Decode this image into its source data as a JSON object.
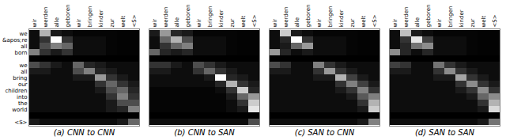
{
  "chart_data": [
    {
      "type": "heatmap",
      "title": "(a) CNN to CNN",
      "x": [
        "wir",
        "werden",
        "alle",
        "geboren",
        "wir",
        "bringen",
        "kinder",
        "zur",
        "welt",
        "<S>"
      ],
      "y": [
        "we",
        "&apos;re",
        "all",
        "born",
        null,
        "we",
        "all",
        "bring",
        "our",
        "children",
        "into",
        "the",
        "world",
        null,
        "<S>"
      ],
      "color_range": [
        0,
        1
      ],
      "values": [
        [
          0.05,
          0.7,
          0.1,
          0.05,
          0.02,
          0.02,
          0.02,
          0.02,
          0.01,
          0.01
        ],
        [
          0.05,
          0.2,
          1.0,
          0.2,
          0.05,
          0.05,
          0.05,
          0.02,
          0.01,
          0.01
        ],
        [
          0.05,
          0.3,
          0.5,
          0.4,
          0.05,
          0.05,
          0.05,
          0.02,
          0.01,
          0.01
        ],
        [
          0.5,
          0.2,
          0.1,
          0.2,
          0.05,
          0.05,
          0.05,
          0.02,
          0.01,
          0.01
        ],
        [
          0.0,
          0.0,
          0.0,
          0.0,
          0.0,
          0.0,
          0.0,
          0.0,
          0.0,
          0.0
        ],
        [
          0.3,
          0.2,
          0.1,
          0.05,
          0.4,
          0.15,
          0.1,
          0.05,
          0.05,
          0.05
        ],
        [
          0.1,
          0.1,
          0.05,
          0.05,
          0.3,
          0.5,
          0.15,
          0.1,
          0.05,
          0.05
        ],
        [
          0.05,
          0.05,
          0.05,
          0.05,
          0.1,
          0.1,
          0.6,
          0.2,
          0.1,
          0.05
        ],
        [
          0.05,
          0.05,
          0.05,
          0.05,
          0.05,
          0.05,
          0.2,
          0.4,
          0.2,
          0.1
        ],
        [
          0.05,
          0.05,
          0.05,
          0.05,
          0.05,
          0.05,
          0.1,
          0.3,
          0.4,
          0.15
        ],
        [
          0.05,
          0.05,
          0.05,
          0.05,
          0.05,
          0.05,
          0.05,
          0.2,
          0.5,
          0.2
        ],
        [
          0.05,
          0.05,
          0.05,
          0.05,
          0.05,
          0.05,
          0.05,
          0.1,
          0.3,
          0.3
        ],
        [
          0.05,
          0.05,
          0.05,
          0.05,
          0.05,
          0.05,
          0.05,
          0.1,
          0.15,
          0.5
        ],
        [
          0.0,
          0.0,
          0.0,
          0.0,
          0.0,
          0.0,
          0.0,
          0.0,
          0.0,
          0.0
        ],
        [
          0.1,
          0.05,
          0.05,
          0.05,
          0.05,
          0.05,
          0.05,
          0.05,
          0.1,
          0.4
        ]
      ]
    },
    {
      "type": "heatmap",
      "title": "(b) CNN to SAN",
      "tick_labels": "x",
      "x": [
        "wir",
        "werden",
        "alle",
        "geboren",
        "wir",
        "bringen",
        "kinder",
        "zur",
        "welt",
        "<S>"
      ],
      "y": [
        "we",
        "&apos;re",
        "all",
        "born",
        null,
        "we",
        "all",
        "bring",
        "our",
        "children",
        "into",
        "the",
        "world",
        null,
        "<S>"
      ],
      "color_range": [
        0,
        1
      ],
      "values": [
        [
          0.1,
          0.6,
          0.15,
          0.1,
          0.02,
          0.02,
          0.02,
          0.02,
          0.01,
          0.01
        ],
        [
          0.05,
          0.4,
          0.7,
          0.3,
          0.05,
          0.05,
          0.05,
          0.02,
          0.01,
          0.01
        ],
        [
          0.05,
          0.2,
          0.4,
          0.5,
          0.05,
          0.05,
          0.05,
          0.02,
          0.01,
          0.01
        ],
        [
          0.4,
          0.15,
          0.1,
          0.15,
          0.05,
          0.05,
          0.05,
          0.02,
          0.01,
          0.01
        ],
        [
          0.0,
          0.0,
          0.0,
          0.0,
          0.0,
          0.0,
          0.0,
          0.0,
          0.0,
          0.0
        ],
        [
          0.2,
          0.2,
          0.1,
          0.05,
          0.3,
          0.2,
          0.1,
          0.05,
          0.05,
          0.05
        ],
        [
          0.1,
          0.1,
          0.05,
          0.05,
          0.2,
          0.4,
          0.2,
          0.1,
          0.05,
          0.05
        ],
        [
          0.05,
          0.05,
          0.05,
          0.05,
          0.05,
          0.1,
          1.0,
          0.15,
          0.1,
          0.05
        ],
        [
          0.05,
          0.05,
          0.05,
          0.05,
          0.05,
          0.05,
          0.15,
          0.7,
          0.2,
          0.1
        ],
        [
          0.02,
          0.02,
          0.02,
          0.02,
          0.02,
          0.02,
          0.05,
          0.2,
          0.8,
          0.15
        ],
        [
          0.02,
          0.02,
          0.02,
          0.02,
          0.02,
          0.02,
          0.02,
          0.1,
          0.4,
          0.6
        ],
        [
          0.02,
          0.02,
          0.02,
          0.02,
          0.02,
          0.02,
          0.02,
          0.05,
          0.2,
          0.8
        ],
        [
          0.02,
          0.02,
          0.02,
          0.02,
          0.02,
          0.02,
          0.02,
          0.05,
          0.1,
          0.9
        ],
        [
          0.0,
          0.0,
          0.0,
          0.0,
          0.0,
          0.0,
          0.0,
          0.0,
          0.0,
          0.0
        ],
        [
          0.05,
          0.05,
          0.05,
          0.05,
          0.05,
          0.05,
          0.05,
          0.05,
          0.05,
          0.3
        ]
      ]
    },
    {
      "type": "heatmap",
      "title": "(c) SAN to CNN",
      "tick_labels": "x",
      "x": [
        "wir",
        "werden",
        "alle",
        "geboren",
        "wir",
        "bringen",
        "kinder",
        "zur",
        "welt",
        "<S>"
      ],
      "y": [
        "we",
        "&apos;re",
        "all",
        "born",
        null,
        "we",
        "all",
        "bring",
        "our",
        "children",
        "into",
        "the",
        "world",
        null,
        "<S>"
      ],
      "color_range": [
        0,
        1
      ],
      "values": [
        [
          0.05,
          0.8,
          0.1,
          0.05,
          0.02,
          0.02,
          0.02,
          0.02,
          0.01,
          0.01
        ],
        [
          0.05,
          0.15,
          1.0,
          0.2,
          0.05,
          0.05,
          0.05,
          0.02,
          0.01,
          0.01
        ],
        [
          0.05,
          0.1,
          0.4,
          0.6,
          0.05,
          0.05,
          0.05,
          0.02,
          0.01,
          0.01
        ],
        [
          0.6,
          0.15,
          0.05,
          0.1,
          0.05,
          0.05,
          0.05,
          0.02,
          0.01,
          0.01
        ],
        [
          0.0,
          0.0,
          0.0,
          0.0,
          0.0,
          0.0,
          0.0,
          0.0,
          0.0,
          0.0
        ],
        [
          0.3,
          0.2,
          0.05,
          0.05,
          0.5,
          0.2,
          0.1,
          0.05,
          0.05,
          0.05
        ],
        [
          0.1,
          0.1,
          0.05,
          0.05,
          0.2,
          0.6,
          0.2,
          0.1,
          0.05,
          0.05
        ],
        [
          0.05,
          0.05,
          0.05,
          0.05,
          0.1,
          0.1,
          0.7,
          0.25,
          0.1,
          0.05
        ],
        [
          0.05,
          0.05,
          0.05,
          0.05,
          0.05,
          0.05,
          0.2,
          0.5,
          0.25,
          0.1
        ],
        [
          0.05,
          0.05,
          0.05,
          0.05,
          0.05,
          0.05,
          0.1,
          0.2,
          0.5,
          0.2
        ],
        [
          0.05,
          0.05,
          0.05,
          0.05,
          0.05,
          0.05,
          0.05,
          0.1,
          0.35,
          0.5
        ],
        [
          0.05,
          0.05,
          0.05,
          0.05,
          0.05,
          0.05,
          0.05,
          0.05,
          0.2,
          0.7
        ],
        [
          0.05,
          0.05,
          0.05,
          0.05,
          0.05,
          0.05,
          0.05,
          0.05,
          0.1,
          0.8
        ],
        [
          0.0,
          0.0,
          0.0,
          0.0,
          0.0,
          0.0,
          0.0,
          0.0,
          0.0,
          0.0
        ],
        [
          0.05,
          0.05,
          0.05,
          0.05,
          0.05,
          0.05,
          0.05,
          0.05,
          0.1,
          0.5
        ]
      ]
    },
    {
      "type": "heatmap",
      "title": "(d) SAN to SAN",
      "tick_labels": "x",
      "x": [
        "wir",
        "werden",
        "alle",
        "geboren",
        "wir",
        "bringen",
        "kinder",
        "zur",
        "welt",
        "<S>"
      ],
      "y": [
        "we",
        "&apos;re",
        "all",
        "born",
        null,
        "we",
        "all",
        "bring",
        "our",
        "children",
        "into",
        "the",
        "world",
        null,
        "<S>"
      ],
      "color_range": [
        0,
        1
      ],
      "values": [
        [
          0.05,
          0.75,
          0.1,
          0.05,
          0.02,
          0.02,
          0.02,
          0.02,
          0.01,
          0.01
        ],
        [
          0.05,
          0.2,
          0.9,
          0.25,
          0.05,
          0.05,
          0.05,
          0.02,
          0.01,
          0.01
        ],
        [
          0.05,
          0.15,
          0.45,
          0.55,
          0.05,
          0.05,
          0.05,
          0.02,
          0.01,
          0.01
        ],
        [
          0.55,
          0.15,
          0.05,
          0.15,
          0.05,
          0.05,
          0.05,
          0.02,
          0.01,
          0.01
        ],
        [
          0.0,
          0.0,
          0.0,
          0.0,
          0.0,
          0.0,
          0.0,
          0.0,
          0.0,
          0.0
        ],
        [
          0.25,
          0.2,
          0.05,
          0.05,
          0.45,
          0.2,
          0.1,
          0.05,
          0.05,
          0.05
        ],
        [
          0.1,
          0.1,
          0.05,
          0.05,
          0.2,
          0.55,
          0.2,
          0.1,
          0.05,
          0.05
        ],
        [
          0.05,
          0.05,
          0.05,
          0.05,
          0.1,
          0.1,
          0.65,
          0.2,
          0.1,
          0.05
        ],
        [
          0.05,
          0.05,
          0.05,
          0.05,
          0.05,
          0.05,
          0.2,
          0.55,
          0.2,
          0.1
        ],
        [
          0.05,
          0.05,
          0.05,
          0.05,
          0.05,
          0.05,
          0.1,
          0.2,
          0.55,
          0.2
        ],
        [
          0.05,
          0.05,
          0.05,
          0.05,
          0.05,
          0.05,
          0.05,
          0.1,
          0.4,
          0.55
        ],
        [
          0.05,
          0.05,
          0.05,
          0.05,
          0.05,
          0.05,
          0.05,
          0.05,
          0.2,
          0.7
        ],
        [
          0.05,
          0.05,
          0.05,
          0.05,
          0.05,
          0.05,
          0.05,
          0.05,
          0.1,
          0.85
        ],
        [
          0.0,
          0.0,
          0.0,
          0.0,
          0.0,
          0.0,
          0.0,
          0.0,
          0.0,
          0.0
        ],
        [
          0.05,
          0.05,
          0.05,
          0.05,
          0.05,
          0.05,
          0.05,
          0.05,
          0.1,
          0.45
        ]
      ]
    }
  ]
}
